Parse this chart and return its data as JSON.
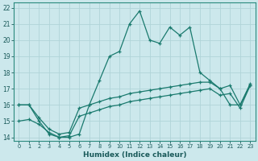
{
  "xlabel": "Humidex (Indice chaleur)",
  "ylabel": "",
  "bg_color": "#cce8ec",
  "grid_color": "#b0d4d8",
  "line_color": "#1a7a6e",
  "xlim": [
    -0.5,
    23.5
  ],
  "ylim": [
    13.8,
    22.3
  ],
  "xticks": [
    0,
    1,
    2,
    3,
    4,
    5,
    6,
    7,
    8,
    9,
    10,
    11,
    12,
    13,
    14,
    15,
    16,
    17,
    18,
    19,
    20,
    21,
    22,
    23
  ],
  "yticks": [
    14,
    15,
    16,
    17,
    18,
    19,
    20,
    21,
    22
  ],
  "series1_x": [
    0,
    1,
    2,
    3,
    4,
    5,
    6,
    7,
    8,
    9,
    10,
    11,
    12,
    13,
    14,
    15,
    16,
    17,
    18,
    19,
    20,
    21,
    22,
    23
  ],
  "series1_y": [
    16.0,
    16.0,
    15.0,
    14.2,
    14.0,
    14.0,
    14.2,
    16.0,
    17.5,
    19.0,
    19.3,
    21.0,
    21.8,
    20.0,
    19.8,
    20.8,
    20.3,
    20.8,
    18.0,
    17.5,
    17.0,
    16.0,
    16.0,
    17.2
  ],
  "series2_x": [
    0,
    1,
    2,
    3,
    4,
    5,
    6,
    7,
    8,
    9,
    10,
    11,
    12,
    13,
    14,
    15,
    16,
    17,
    18,
    19,
    20,
    21,
    22,
    23
  ],
  "series2_y": [
    16.0,
    16.0,
    15.2,
    14.5,
    14.2,
    14.3,
    15.8,
    16.0,
    16.2,
    16.4,
    16.5,
    16.7,
    16.8,
    16.9,
    17.0,
    17.1,
    17.2,
    17.3,
    17.4,
    17.4,
    17.0,
    17.2,
    16.0,
    17.3
  ],
  "series3_x": [
    0,
    1,
    2,
    3,
    4,
    5,
    6,
    7,
    8,
    9,
    10,
    11,
    12,
    13,
    14,
    15,
    16,
    17,
    18,
    19,
    20,
    21,
    22,
    23
  ],
  "series3_y": [
    15.0,
    15.1,
    14.8,
    14.3,
    14.0,
    14.1,
    15.3,
    15.5,
    15.7,
    15.9,
    16.0,
    16.2,
    16.3,
    16.4,
    16.5,
    16.6,
    16.7,
    16.8,
    16.9,
    17.0,
    16.6,
    16.7,
    15.8,
    17.2
  ]
}
